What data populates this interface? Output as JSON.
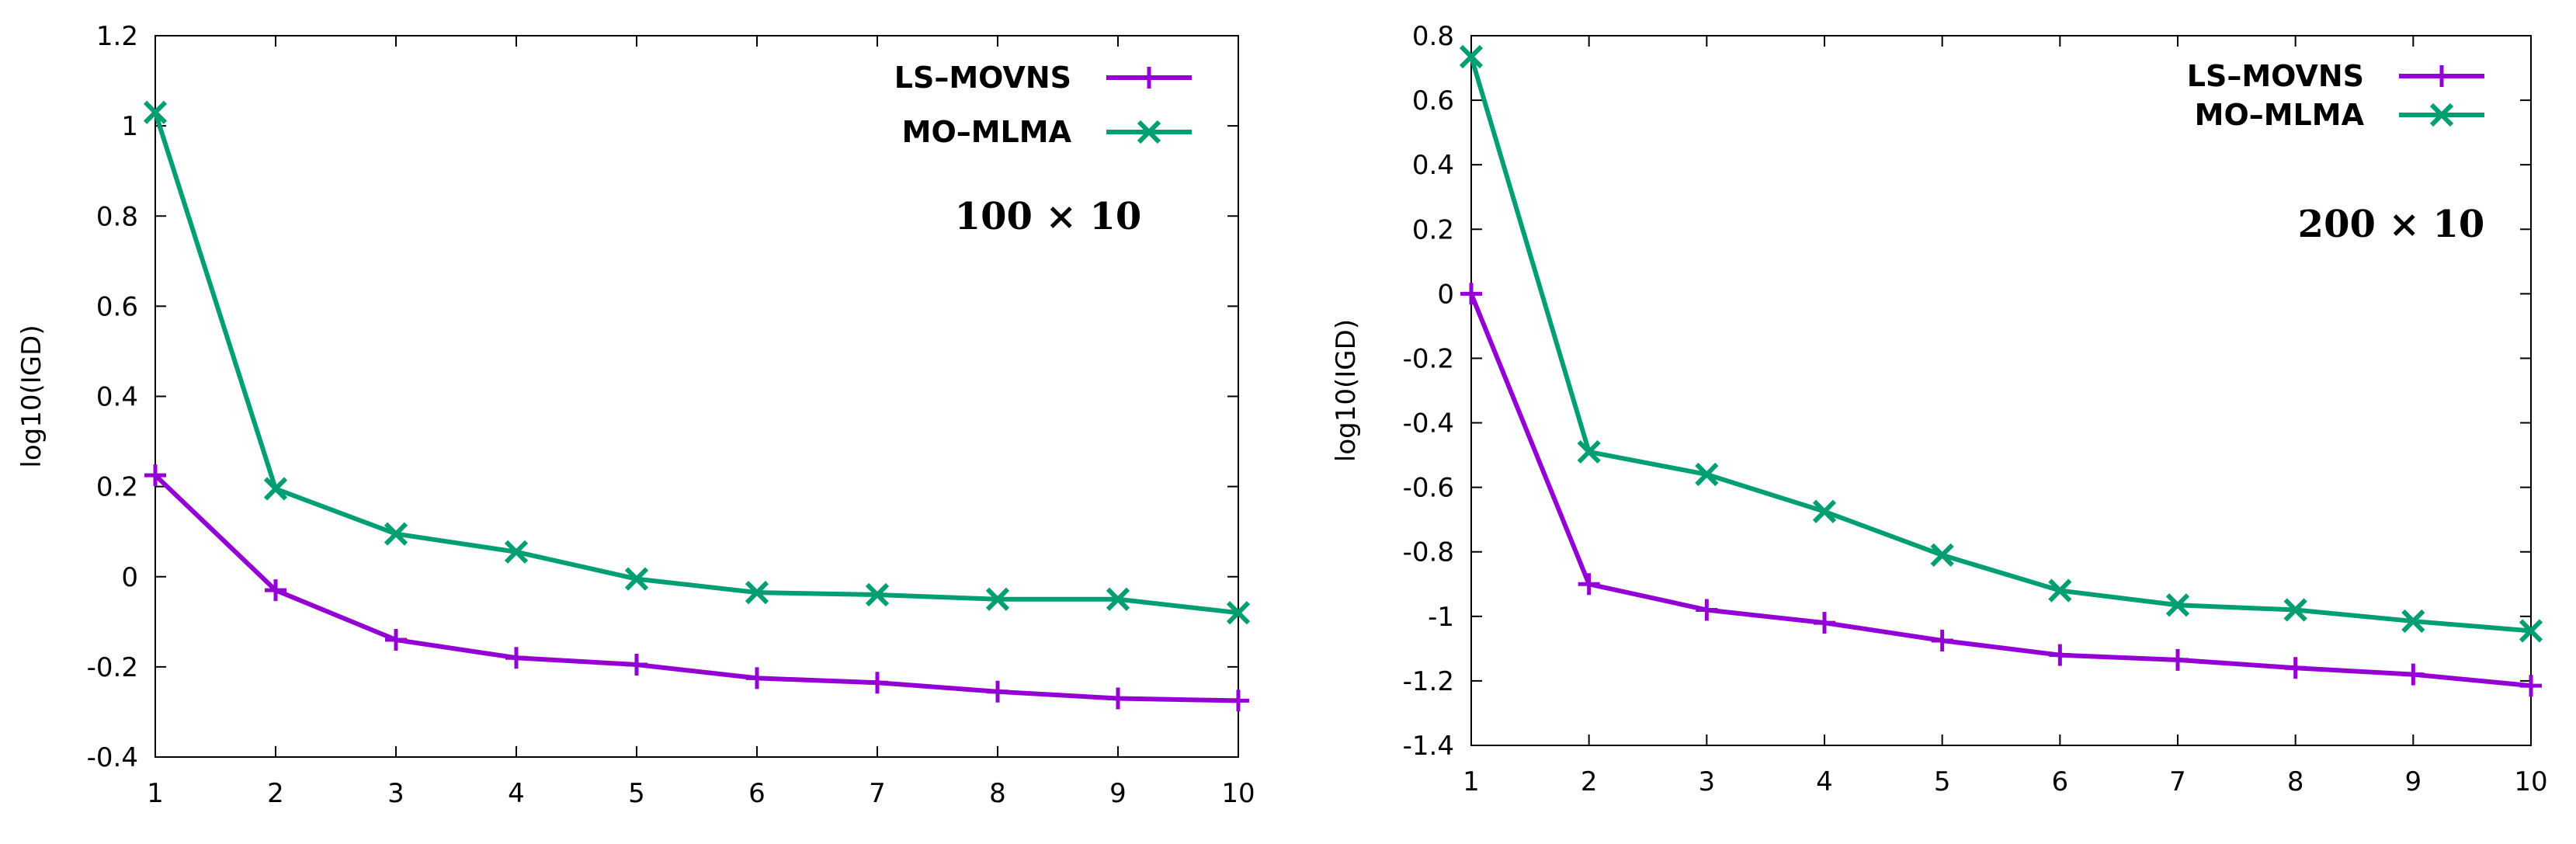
{
  "chart_data": [
    {
      "type": "line",
      "annotation": "100 × 10",
      "xlabel": "",
      "ylabel": "log10(IGD)",
      "x": [
        1,
        2,
        3,
        4,
        5,
        6,
        7,
        8,
        9,
        10
      ],
      "xlim": [
        1,
        10
      ],
      "ylim": [
        -0.4,
        1.2
      ],
      "yticks": [
        -0.4,
        -0.2,
        0,
        0.2,
        0.4,
        0.6,
        0.8,
        1,
        1.2
      ],
      "ytick_labels": [
        "-0.4",
        "-0.2",
        "0",
        "0.2",
        "0.4",
        "0.6",
        "0.8",
        "1",
        "1.2"
      ],
      "xtick_labels": [
        "1",
        "2",
        "3",
        "4",
        "5",
        "6",
        "7",
        "8",
        "9",
        "10"
      ],
      "legend_position": "top-right",
      "series": [
        {
          "name": "LS–MOVNS",
          "color": "#9400D3",
          "marker": "plus",
          "values": [
            0.225,
            -0.03,
            -0.14,
            -0.18,
            -0.195,
            -0.225,
            -0.235,
            -0.255,
            -0.27,
            -0.275
          ]
        },
        {
          "name": "MO–MLMA",
          "color": "#009E73",
          "marker": "cross",
          "values": [
            1.03,
            0.195,
            0.095,
            0.055,
            -0.005,
            -0.035,
            -0.04,
            -0.05,
            -0.05,
            -0.08
          ]
        }
      ]
    },
    {
      "type": "line",
      "annotation": "200 × 10",
      "xlabel": "",
      "ylabel": "log10(IGD)",
      "x": [
        1,
        2,
        3,
        4,
        5,
        6,
        7,
        8,
        9,
        10
      ],
      "xlim": [
        1,
        10
      ],
      "ylim": [
        -1.4,
        0.8
      ],
      "yticks": [
        -1.4,
        -1.2,
        -1,
        -0.8,
        -0.6,
        -0.4,
        -0.2,
        0,
        0.2,
        0.4,
        0.6,
        0.8
      ],
      "ytick_labels": [
        "-1.4",
        "-1.2",
        "-1",
        "-0.8",
        "-0.6",
        "-0.4",
        "-0.2",
        "0",
        "0.2",
        "0.4",
        "0.6",
        "0.8"
      ],
      "xtick_labels": [
        "1",
        "2",
        "3",
        "4",
        "5",
        "6",
        "7",
        "8",
        "9",
        "10"
      ],
      "legend_position": "top-right",
      "series": [
        {
          "name": "LS–MOVNS",
          "color": "#9400D3",
          "marker": "plus",
          "values": [
            0.0,
            -0.9,
            -0.98,
            -1.02,
            -1.075,
            -1.12,
            -1.135,
            -1.16,
            -1.18,
            -1.215
          ]
        },
        {
          "name": "MO–MLMA",
          "color": "#009E73",
          "marker": "cross",
          "values": [
            0.735,
            -0.49,
            -0.56,
            -0.675,
            -0.81,
            -0.92,
            -0.965,
            -0.98,
            -1.015,
            -1.045
          ]
        }
      ]
    }
  ]
}
